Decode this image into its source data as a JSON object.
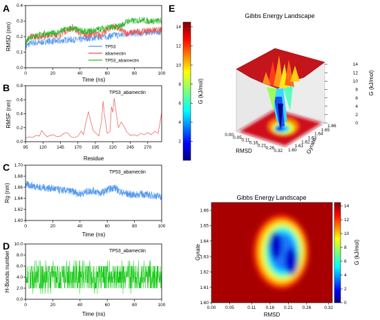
{
  "panels": {
    "A": {
      "label": "A"
    },
    "B": {
      "label": "B"
    },
    "C": {
      "label": "C"
    },
    "D": {
      "label": "D"
    },
    "E": {
      "label": "E"
    }
  },
  "chart_data": [
    {
      "id": "A",
      "type": "line",
      "xlabel": "Time (ns)",
      "ylabel": "RMSD (nm)",
      "xlim": [
        0,
        100
      ],
      "ylim": [
        0.0,
        0.4
      ],
      "xticks": [
        0,
        20,
        40,
        60,
        80,
        100
      ],
      "yticks": [
        0.0,
        0.1,
        0.2,
        0.3,
        0.4
      ],
      "legend_position": "bottom-center",
      "series": [
        {
          "name": "TP53",
          "color": "#4f97ef",
          "x": [
            0,
            2,
            5,
            10,
            15,
            20,
            25,
            30,
            35,
            40,
            45,
            50,
            55,
            60,
            65,
            70,
            75,
            80,
            85,
            90,
            95,
            100
          ],
          "y": [
            0.13,
            0.15,
            0.16,
            0.16,
            0.17,
            0.17,
            0.17,
            0.18,
            0.18,
            0.18,
            0.19,
            0.19,
            0.2,
            0.2,
            0.21,
            0.21,
            0.22,
            0.22,
            0.22,
            0.23,
            0.23,
            0.23
          ]
        },
        {
          "name": "abamectin",
          "color": "#f0524a",
          "x": [
            0,
            2,
            5,
            10,
            15,
            20,
            25,
            30,
            35,
            40,
            45,
            50,
            55,
            60,
            65,
            70,
            75,
            80,
            85,
            90,
            95,
            100
          ],
          "y": [
            0.17,
            0.19,
            0.2,
            0.2,
            0.21,
            0.21,
            0.21,
            0.24,
            0.26,
            0.22,
            0.21,
            0.22,
            0.21,
            0.24,
            0.27,
            0.24,
            0.22,
            0.23,
            0.23,
            0.24,
            0.24,
            0.24
          ]
        },
        {
          "name": "TP53_abamectin",
          "color": "#2ab82a",
          "x": [
            0,
            2,
            5,
            10,
            15,
            20,
            25,
            30,
            35,
            40,
            45,
            50,
            55,
            60,
            65,
            70,
            75,
            80,
            85,
            90,
            95,
            100
          ],
          "y": [
            0.16,
            0.19,
            0.2,
            0.21,
            0.22,
            0.22,
            0.23,
            0.25,
            0.25,
            0.24,
            0.23,
            0.24,
            0.25,
            0.26,
            0.26,
            0.27,
            0.3,
            0.3,
            0.31,
            0.3,
            0.3,
            0.3
          ]
        }
      ]
    },
    {
      "id": "B",
      "type": "line",
      "xlabel": "Residue",
      "ylabel": "RMSF (nm)",
      "annotation": "TP53_abamectin",
      "xlim": [
        95,
        290
      ],
      "ylim": [
        0.0,
        0.8
      ],
      "xticks": [
        95,
        120,
        145,
        170,
        195,
        220,
        245,
        270
      ],
      "yticks": [
        0.0,
        0.2,
        0.4,
        0.6,
        0.8
      ],
      "series": [
        {
          "color": "#f0524a",
          "x": [
            95,
            100,
            105,
            110,
            115,
            118,
            122,
            126,
            130,
            135,
            140,
            145,
            150,
            155,
            160,
            165,
            170,
            175,
            178,
            182,
            185,
            188,
            192,
            196,
            200,
            204,
            206,
            208,
            212,
            216,
            218,
            220,
            222,
            224,
            226,
            228,
            232,
            236,
            240,
            245,
            250,
            255,
            260,
            265,
            270,
            275,
            280,
            285,
            290
          ],
          "y": [
            0.05,
            0.07,
            0.06,
            0.09,
            0.08,
            0.16,
            0.11,
            0.07,
            0.09,
            0.1,
            0.07,
            0.08,
            0.12,
            0.13,
            0.07,
            0.06,
            0.08,
            0.15,
            0.1,
            0.3,
            0.43,
            0.3,
            0.16,
            0.12,
            0.08,
            0.3,
            0.58,
            0.38,
            0.12,
            0.15,
            0.5,
            0.42,
            0.62,
            0.48,
            0.33,
            0.2,
            0.28,
            0.22,
            0.14,
            0.09,
            0.1,
            0.08,
            0.12,
            0.1,
            0.13,
            0.1,
            0.15,
            0.12,
            0.42
          ]
        }
      ]
    },
    {
      "id": "C",
      "type": "line",
      "xlabel": "Time (ns)",
      "ylabel": "Rg (nm)",
      "annotation": "TP53_abamectin",
      "xlim": [
        0,
        100
      ],
      "ylim": [
        1.6,
        1.7
      ],
      "xticks": [
        0,
        20,
        40,
        60,
        80,
        100
      ],
      "yticks": [
        1.6,
        1.62,
        1.64,
        1.66,
        1.68,
        1.7
      ],
      "series": [
        {
          "color": "#4f97ef",
          "x": [
            0,
            5,
            10,
            15,
            20,
            25,
            30,
            35,
            40,
            45,
            50,
            55,
            60,
            65,
            70,
            75,
            80,
            85,
            90,
            95,
            100
          ],
          "y": [
            1.665,
            1.663,
            1.66,
            1.659,
            1.658,
            1.655,
            1.654,
            1.652,
            1.648,
            1.652,
            1.654,
            1.649,
            1.655,
            1.66,
            1.651,
            1.648,
            1.646,
            1.648,
            1.646,
            1.645,
            1.643
          ]
        }
      ]
    },
    {
      "id": "D",
      "type": "bar",
      "xlabel": "Time (ns)",
      "ylabel": "H-Bonds number",
      "annotation": "TP53_abamectin",
      "xlim": [
        0,
        100
      ],
      "ylim": [
        0,
        10
      ],
      "xticks": [
        0,
        20,
        40,
        60,
        80,
        100
      ],
      "yticks": [
        0,
        2,
        4,
        6,
        8,
        10
      ],
      "series": [
        {
          "color": "#14c814",
          "typical_range": [
            2,
            6
          ],
          "mean": 4
        }
      ]
    },
    {
      "id": "E-3d",
      "type": "heatmap",
      "title": "Gibbs Energy Landscape",
      "xlabel": "RMSD",
      "ylabel": "Gyrate",
      "zlabel": "G (kJ/mol)",
      "xticks": [
        0.0,
        0.05,
        0.11,
        0.16,
        0.21,
        0.26,
        0.32
      ],
      "yticks": [
        1.6,
        1.61,
        1.62,
        1.63,
        1.64,
        1.65,
        1.66
      ],
      "zticks": [
        0,
        2,
        4,
        6,
        8,
        10,
        12,
        14
      ],
      "colorbar_ticks": [
        2,
        4,
        6,
        8,
        10,
        12,
        14
      ],
      "zlim": [
        0,
        14.5
      ]
    },
    {
      "id": "E-2d",
      "type": "heatmap",
      "title": "Gibbs Energy Landscape",
      "xlabel": "RMSD",
      "ylabel": "Gyrate",
      "colorbar_label": "G (kJ/mol)",
      "xlim": [
        0.0,
        0.33
      ],
      "ylim": [
        1.6,
        1.665
      ],
      "xticks": [
        0.0,
        0.05,
        0.11,
        0.16,
        0.21,
        0.26,
        0.32
      ],
      "yticks": [
        1.6,
        1.61,
        1.62,
        1.63,
        1.64,
        1.65,
        1.66
      ],
      "colorbar_ticks": [
        0,
        2,
        4,
        6,
        8,
        10,
        12,
        14
      ],
      "zlim": [
        0,
        14.5
      ],
      "minima": [
        {
          "x": 0.175,
          "y": 1.637,
          "g": 0
        },
        {
          "x": 0.218,
          "y": 1.627,
          "g": 1
        }
      ]
    }
  ]
}
